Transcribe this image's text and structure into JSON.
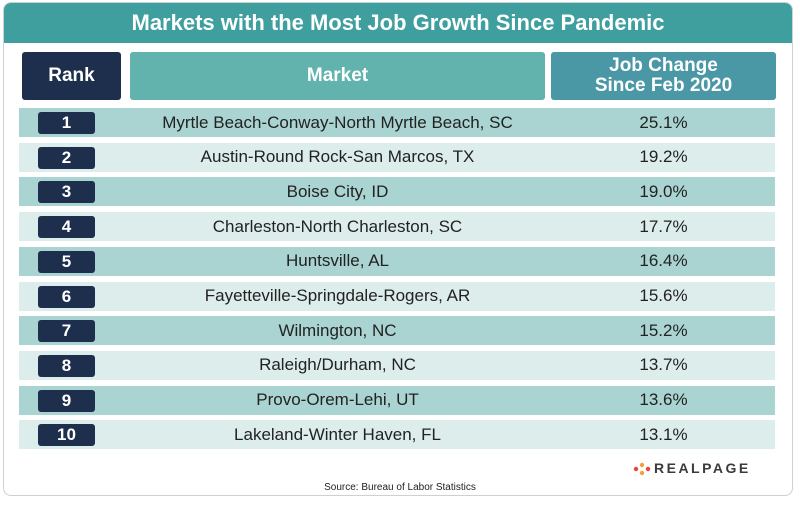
{
  "header": {
    "title": "Markets with the Most Job Growth Since Pandemic"
  },
  "table": {
    "columns": [
      "Rank",
      "Market",
      [
        "Job Change",
        "Since Feb 2020"
      ]
    ],
    "rows": [
      [
        "1",
        "Myrtle Beach-Conway-North Myrtle Beach, SC",
        "25.1%"
      ],
      [
        "2",
        "Austin-Round Rock-San Marcos, TX",
        "19.2%"
      ],
      [
        "3",
        "Boise City, ID",
        "19.0%"
      ],
      [
        "4",
        "Charleston-North Charleston, SC",
        "17.7%"
      ],
      [
        "5",
        "Huntsville, AL",
        "16.4%"
      ],
      [
        "6",
        "Fayetteville-Springdale-Rogers, AR",
        "15.6%"
      ],
      [
        "7",
        "Wilmington, NC",
        "15.2%"
      ],
      [
        "8",
        "Raleigh/Durham, NC",
        "13.7%"
      ],
      [
        "9",
        "Provo-Orem-Lehi, UT",
        "13.6%"
      ],
      [
        "10",
        "Lakeland-Winter Haven, FL",
        "13.1%"
      ]
    ]
  },
  "footer": {
    "source": "Source: Bureau of Labor Statistics",
    "logo": "REALPAGE"
  }
}
